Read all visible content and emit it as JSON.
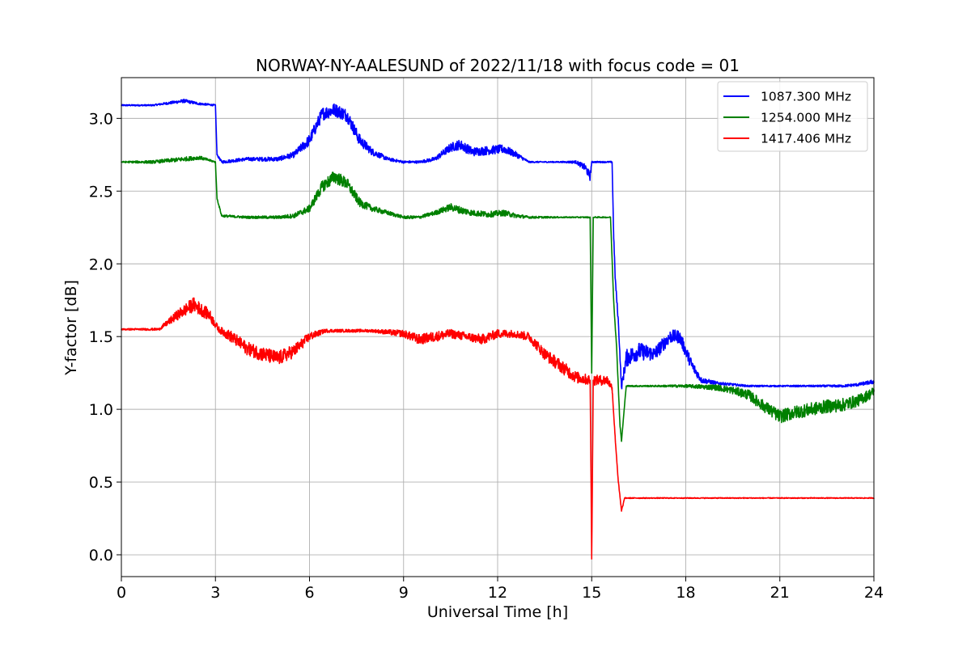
{
  "chart_data": {
    "type": "line",
    "title": "NORWAY-NY-AALESUND of 2022/11/18 with focus code = 01",
    "xlabel": "Universal Time [h]",
    "ylabel": "Y-factor [dB]",
    "xlim": [
      0,
      24
    ],
    "ylim": [
      -0.15,
      3.28
    ],
    "xticks": [
      0,
      3,
      6,
      9,
      12,
      15,
      18,
      21,
      24
    ],
    "xtick_labels": [
      "0",
      "3",
      "6",
      "9",
      "12",
      "15",
      "18",
      "21",
      "24"
    ],
    "yticks": [
      0.0,
      0.5,
      1.0,
      1.5,
      2.0,
      2.5,
      3.0
    ],
    "ytick_labels": [
      "0.0",
      "0.5",
      "1.0",
      "1.5",
      "2.0",
      "2.5",
      "3.0"
    ],
    "grid": true,
    "legend_position": "top-right",
    "series": [
      {
        "name": "1087.300 MHz",
        "color": "#0000ff",
        "x": [
          0,
          1,
          2,
          2.5,
          3.0,
          3.05,
          3.2,
          4,
          5,
          5.5,
          6,
          6.4,
          6.8,
          7.2,
          7.6,
          8,
          8.5,
          9,
          9.5,
          10,
          10.5,
          10.8,
          11.2,
          11.7,
          12.2,
          12.6,
          13,
          14,
          14.5,
          14.8,
          14.95,
          15.0,
          15.05,
          15.3,
          15.65,
          15.7,
          15.75,
          15.85,
          15.95,
          16.1,
          16.5,
          17,
          17.5,
          17.8,
          18.2,
          18.5,
          19,
          20,
          21,
          22,
          23,
          23.5,
          24
        ],
        "y": [
          3.09,
          3.09,
          3.12,
          3.1,
          3.09,
          2.75,
          2.7,
          2.72,
          2.72,
          2.75,
          2.85,
          3.03,
          3.06,
          3.02,
          2.85,
          2.77,
          2.72,
          2.7,
          2.7,
          2.72,
          2.8,
          2.82,
          2.77,
          2.78,
          2.79,
          2.75,
          2.7,
          2.7,
          2.7,
          2.66,
          2.6,
          2.7,
          2.7,
          2.7,
          2.7,
          2.2,
          1.9,
          1.6,
          1.15,
          1.35,
          1.4,
          1.38,
          1.5,
          1.5,
          1.3,
          1.2,
          1.18,
          1.16,
          1.16,
          1.16,
          1.16,
          1.17,
          1.19
        ],
        "noise": [
          0.005,
          0.005,
          0.012,
          0.008,
          0.005,
          0.005,
          0.01,
          0.012,
          0.015,
          0.02,
          0.04,
          0.045,
          0.045,
          0.045,
          0.04,
          0.025,
          0.012,
          0.008,
          0.008,
          0.015,
          0.03,
          0.035,
          0.03,
          0.03,
          0.03,
          0.02,
          0.005,
          0.004,
          0.01,
          0.025,
          0.03,
          0.005,
          0.005,
          0.005,
          0.005,
          0.02,
          0.02,
          0.02,
          0.02,
          0.06,
          0.06,
          0.05,
          0.045,
          0.045,
          0.04,
          0.02,
          0.01,
          0.006,
          0.005,
          0.006,
          0.008,
          0.01,
          0.015
        ]
      },
      {
        "name": "1254.000 MHz",
        "color": "#008000",
        "x": [
          0,
          1,
          2,
          2.5,
          3.0,
          3.05,
          3.2,
          4,
          5,
          5.5,
          6,
          6.4,
          6.8,
          7.2,
          7.6,
          8,
          8.5,
          9,
          9.5,
          10,
          10.5,
          10.8,
          11.2,
          11.7,
          12.2,
          12.6,
          13,
          14,
          14.95,
          15.0,
          15.05,
          15.6,
          15.7,
          15.8,
          15.9,
          15.95,
          16.1,
          16.3,
          17,
          18,
          19,
          19.5,
          20,
          20.5,
          21,
          21.5,
          22,
          22.5,
          23,
          23.5,
          24
        ],
        "y": [
          2.7,
          2.7,
          2.72,
          2.73,
          2.7,
          2.45,
          2.33,
          2.32,
          2.32,
          2.33,
          2.38,
          2.53,
          2.6,
          2.55,
          2.42,
          2.38,
          2.35,
          2.32,
          2.32,
          2.35,
          2.39,
          2.37,
          2.35,
          2.34,
          2.35,
          2.33,
          2.32,
          2.32,
          2.32,
          1.25,
          2.32,
          2.32,
          1.75,
          1.4,
          0.9,
          0.78,
          1.16,
          1.16,
          1.16,
          1.16,
          1.15,
          1.13,
          1.1,
          1.02,
          0.95,
          0.98,
          1.0,
          1.02,
          1.03,
          1.06,
          1.12
        ],
        "noise": [
          0.005,
          0.01,
          0.015,
          0.012,
          0.005,
          0.005,
          0.008,
          0.008,
          0.01,
          0.015,
          0.025,
          0.04,
          0.045,
          0.04,
          0.03,
          0.02,
          0.015,
          0.01,
          0.01,
          0.015,
          0.025,
          0.025,
          0.02,
          0.02,
          0.02,
          0.015,
          0.008,
          0.004,
          0.004,
          0.004,
          0.004,
          0.004,
          0.01,
          0.01,
          0.01,
          0.004,
          0.004,
          0.005,
          0.005,
          0.01,
          0.02,
          0.025,
          0.035,
          0.04,
          0.045,
          0.045,
          0.045,
          0.045,
          0.045,
          0.04,
          0.035
        ]
      },
      {
        "name": "1417.406 MHz",
        "color": "#ff0000",
        "x": [
          0,
          1.2,
          1.8,
          2.3,
          2.8,
          3.1,
          3.5,
          4,
          4.5,
          5,
          5.5,
          6,
          6.5,
          7,
          8,
          9,
          9.5,
          10,
          10.5,
          11,
          11.5,
          12,
          12.5,
          13,
          13.5,
          14,
          14.5,
          14.95,
          15.0,
          15.05,
          15.5,
          15.65,
          15.75,
          15.85,
          15.95,
          16.05,
          17,
          18,
          19,
          20,
          21,
          22,
          23,
          24
        ],
        "y": [
          1.55,
          1.55,
          1.65,
          1.72,
          1.65,
          1.55,
          1.5,
          1.42,
          1.38,
          1.35,
          1.4,
          1.5,
          1.54,
          1.54,
          1.54,
          1.52,
          1.48,
          1.5,
          1.52,
          1.5,
          1.48,
          1.52,
          1.52,
          1.5,
          1.38,
          1.3,
          1.22,
          1.2,
          0.0,
          1.2,
          1.2,
          1.15,
          0.8,
          0.5,
          0.3,
          0.39,
          0.39,
          0.39,
          0.39,
          0.39,
          0.39,
          0.39,
          0.39,
          0.39
        ],
        "noise": [
          0.005,
          0.008,
          0.035,
          0.05,
          0.04,
          0.02,
          0.04,
          0.045,
          0.05,
          0.05,
          0.045,
          0.03,
          0.012,
          0.01,
          0.01,
          0.025,
          0.035,
          0.035,
          0.03,
          0.03,
          0.035,
          0.03,
          0.025,
          0.03,
          0.04,
          0.045,
          0.04,
          0.035,
          0.035,
          0.035,
          0.035,
          0.02,
          0.01,
          0.01,
          0.01,
          0.003,
          0.003,
          0.003,
          0.003,
          0.003,
          0.003,
          0.003,
          0.003,
          0.003
        ]
      }
    ]
  }
}
